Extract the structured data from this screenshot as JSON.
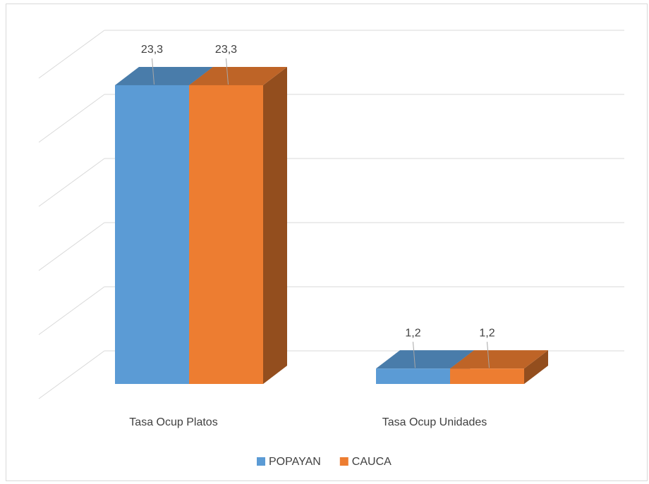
{
  "chart_data": {
    "type": "bar3d",
    "categories": [
      "Tasa Ocup Platos",
      "Tasa Ocup Unidades"
    ],
    "series": [
      {
        "name": "POPAYAN",
        "color": "#5b9bd5",
        "values": [
          23.3,
          1.2
        ],
        "value_labels": [
          "23,3",
          "1,2"
        ]
      },
      {
        "name": "CAUCA",
        "color": "#ed7d31",
        "values": [
          23.3,
          1.2
        ],
        "value_labels": [
          "23,3",
          "1,2"
        ]
      }
    ],
    "ylim": [
      0,
      25
    ],
    "yticks": [
      0,
      5,
      10,
      15,
      20,
      25
    ],
    "grid": true,
    "legend": "bottom"
  }
}
